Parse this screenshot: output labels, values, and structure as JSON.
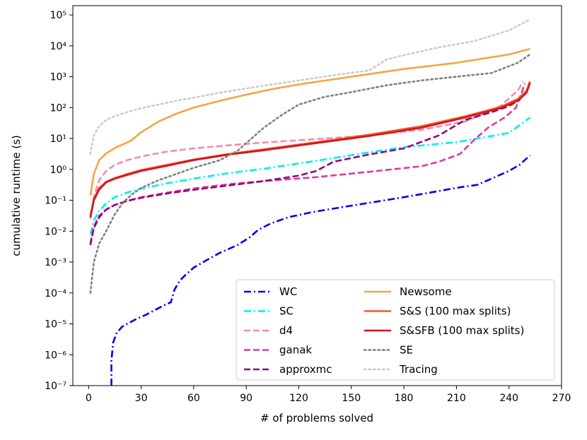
{
  "chart_data": {
    "type": "line",
    "title": "",
    "xlabel": "# of problems solved",
    "ylabel": "cumulative runtime (s)",
    "xlim": [
      -9,
      270
    ],
    "ylim_log10": [
      -7,
      5.3
    ],
    "x_ticks": [
      0,
      30,
      60,
      90,
      120,
      150,
      180,
      210,
      240,
      270
    ],
    "x_tick_labels": [
      "0",
      "30",
      "60",
      "90",
      "120",
      "150",
      "180",
      "210",
      "240",
      "270"
    ],
    "y_ticks_log10": [
      -7,
      -6,
      -5,
      -4,
      -3,
      -2,
      -1,
      0,
      1,
      2,
      3,
      4,
      5
    ],
    "y_tick_labels": [
      "10⁻⁷",
      "10⁻⁶",
      "10⁻⁵",
      "10⁻⁴",
      "10⁻³",
      "10⁻²",
      "10⁻¹",
      "10⁰",
      "10¹",
      "10²",
      "10³",
      "10⁴",
      "10⁵"
    ],
    "legend_position": "lower-right",
    "series": [
      {
        "name": "WC",
        "color": "#0000ee",
        "dash": "dashdot",
        "x": [
          13,
          13,
          14,
          16,
          19,
          22,
          27,
          33,
          38,
          43,
          47,
          49,
          52,
          56,
          60,
          67,
          75,
          85,
          92,
          97,
          104,
          114,
          128,
          145,
          164,
          180,
          198,
          212,
          222,
          232,
          240,
          246,
          252
        ],
        "y": [
          -7,
          -6.2,
          -5.6,
          -5.3,
          -5.1,
          -5.0,
          -4.85,
          -4.7,
          -4.55,
          -4.4,
          -4.3,
          -3.9,
          -3.6,
          -3.38,
          -3.18,
          -2.95,
          -2.7,
          -2.45,
          -2.2,
          -1.95,
          -1.75,
          -1.55,
          -1.38,
          -1.22,
          -1.05,
          -0.9,
          -0.72,
          -0.58,
          -0.5,
          -0.25,
          -0.05,
          0.15,
          0.45
        ]
      },
      {
        "name": "SC",
        "color": "#00eeee",
        "dash": "dashdot",
        "x": [
          1,
          3,
          6,
          10,
          15,
          22,
          30,
          45,
          60,
          80,
          100,
          130,
          160,
          180,
          210,
          240,
          252
        ],
        "y": [
          -2.1,
          -1.65,
          -1.35,
          -1.1,
          -0.9,
          -0.75,
          -0.62,
          -0.45,
          -0.3,
          -0.12,
          0.02,
          0.28,
          0.55,
          0.72,
          0.88,
          1.18,
          1.68
        ]
      },
      {
        "name": "d4",
        "color": "#f58ca8",
        "dash": "dashed",
        "x": [
          1,
          3,
          6,
          10,
          15,
          22,
          30,
          45,
          60,
          80,
          100,
          130,
          160,
          190,
          215,
          235,
          245,
          248
        ],
        "y": [
          -1.6,
          -0.9,
          -0.35,
          -0.05,
          0.15,
          0.3,
          0.42,
          0.58,
          0.68,
          0.78,
          0.87,
          0.98,
          1.1,
          1.28,
          1.55,
          2.05,
          2.55,
          2.85
        ]
      },
      {
        "name": "ganak",
        "color": "#e0399a",
        "dash": "dashed",
        "x": [
          1,
          3,
          6,
          10,
          15,
          22,
          30,
          45,
          60,
          80,
          100,
          130,
          160,
          190,
          200,
          212,
          220,
          228,
          238,
          244,
          247,
          249
        ],
        "y": [
          -2.4,
          -1.85,
          -1.5,
          -1.3,
          -1.15,
          -1.02,
          -0.9,
          -0.75,
          -0.62,
          -0.48,
          -0.38,
          -0.25,
          -0.08,
          0.1,
          0.25,
          0.5,
          0.95,
          1.35,
          1.7,
          2.0,
          2.45,
          2.78
        ]
      },
      {
        "name": "approxmc",
        "color": "#8b0a7a",
        "dash": "dashed",
        "x": [
          1,
          3,
          6,
          10,
          15,
          22,
          30,
          45,
          60,
          80,
          100,
          120,
          130,
          140,
          160,
          180,
          200,
          215,
          230,
          240,
          246,
          248
        ],
        "y": [
          -2.45,
          -1.9,
          -1.55,
          -1.3,
          -1.15,
          -1.02,
          -0.92,
          -0.78,
          -0.66,
          -0.52,
          -0.38,
          -0.2,
          -0.05,
          0.25,
          0.48,
          0.68,
          1.1,
          1.6,
          1.85,
          2.05,
          2.25,
          2.45
        ]
      },
      {
        "name": "Newsome",
        "color": "#f5a444",
        "dash": "solid",
        "x": [
          1,
          3,
          6,
          10,
          16,
          24,
          30,
          40,
          50,
          60,
          75,
          90,
          105,
          120,
          150,
          180,
          210,
          240,
          252
        ],
        "y": [
          -0.85,
          -0.15,
          0.3,
          0.52,
          0.72,
          0.92,
          1.2,
          1.55,
          1.8,
          2.0,
          2.22,
          2.42,
          2.6,
          2.75,
          3.0,
          3.25,
          3.45,
          3.72,
          3.9
        ]
      },
      {
        "name": "S&S (100 max splits)",
        "color": "#f25a2c",
        "dash": "solid",
        "x": [
          1,
          3,
          6,
          10,
          15,
          22,
          30,
          45,
          60,
          80,
          100,
          130,
          160,
          190,
          215,
          235,
          245,
          250,
          252
        ],
        "y": [
          -1.5,
          -0.95,
          -0.6,
          -0.4,
          -0.28,
          -0.15,
          -0.02,
          0.15,
          0.32,
          0.5,
          0.65,
          0.88,
          1.12,
          1.4,
          1.72,
          2.02,
          2.28,
          2.55,
          2.85
        ]
      },
      {
        "name": "S&SFB (100 max splits)",
        "color": "#d4141e",
        "dash": "solid",
        "x": [
          1,
          3,
          6,
          10,
          15,
          22,
          30,
          45,
          60,
          80,
          100,
          130,
          160,
          190,
          215,
          235,
          245,
          250,
          252
        ],
        "y": [
          -1.55,
          -1.0,
          -0.65,
          -0.42,
          -0.3,
          -0.18,
          -0.05,
          0.12,
          0.3,
          0.48,
          0.62,
          0.85,
          1.08,
          1.35,
          1.68,
          1.98,
          2.22,
          2.48,
          2.8
        ]
      },
      {
        "name": "SE",
        "color": "#808080",
        "dash": "dotted",
        "x": [
          1,
          3,
          6,
          10,
          15,
          20,
          25,
          30,
          40,
          50,
          60,
          75,
          85,
          92,
          100,
          110,
          120,
          135,
          150,
          170,
          190,
          210,
          230,
          245,
          252
        ],
        "y": [
          -4.0,
          -3.0,
          -2.4,
          -2.0,
          -1.45,
          -1.05,
          -0.8,
          -0.6,
          -0.35,
          -0.15,
          0.05,
          0.3,
          0.6,
          0.95,
          1.35,
          1.75,
          2.1,
          2.35,
          2.5,
          2.72,
          2.88,
          3.0,
          3.12,
          3.45,
          3.72
        ]
      },
      {
        "name": "Tracing",
        "color": "#cccccc",
        "dash": "dotted",
        "x": [
          1,
          3,
          6,
          10,
          15,
          20,
          30,
          40,
          50,
          60,
          75,
          90,
          105,
          120,
          140,
          160,
          170,
          180,
          200,
          220,
          240,
          252
        ],
        "y": [
          0.5,
          1.1,
          1.4,
          1.6,
          1.72,
          1.82,
          1.98,
          2.1,
          2.22,
          2.32,
          2.48,
          2.62,
          2.75,
          2.88,
          3.05,
          3.2,
          3.55,
          3.7,
          3.95,
          4.15,
          4.5,
          4.85
        ]
      }
    ]
  }
}
